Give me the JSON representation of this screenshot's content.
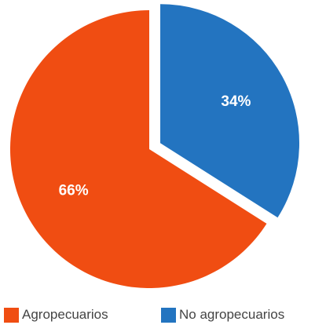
{
  "chart_data": {
    "type": "pie",
    "categories": [
      "Agropecuarios",
      "No agropecuarios"
    ],
    "values": [
      66,
      34
    ],
    "data_labels": [
      "66%",
      "34%"
    ],
    "colors": [
      "#f04d12",
      "#2374c0"
    ],
    "exploded": [
      "No agropecuarios"
    ],
    "legend": "bottom"
  }
}
